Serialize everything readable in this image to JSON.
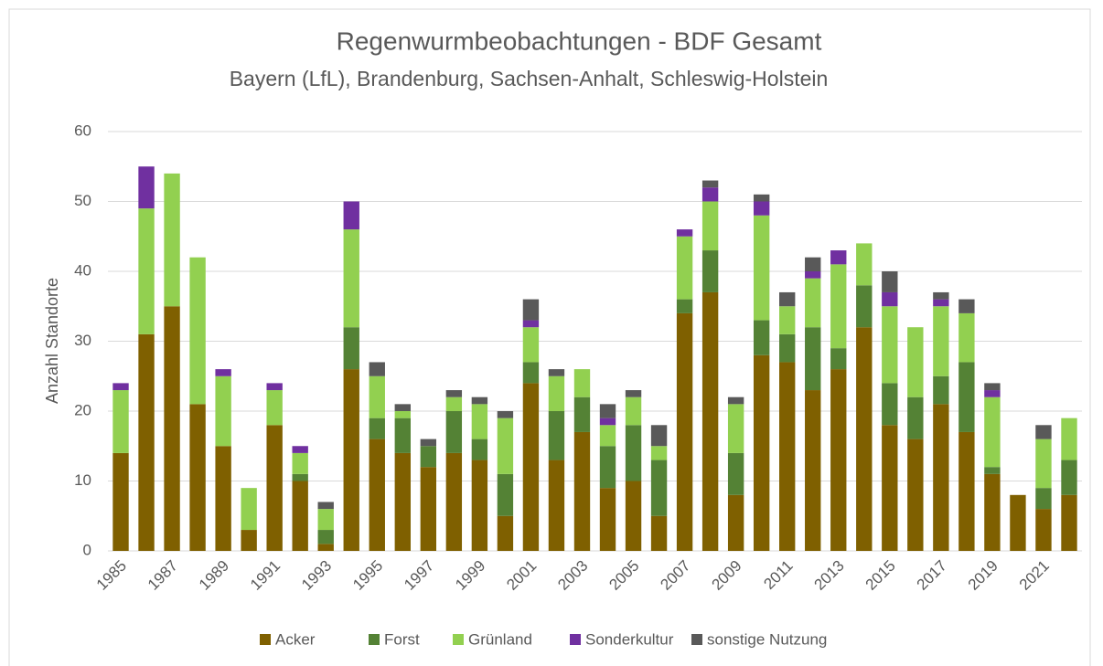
{
  "chart_data": {
    "type": "stacked_bar",
    "title": "Regenwurmbeobachtungen  - BDF Gesamt",
    "subtitle": "Bayern (LfL), Brandenburg, Sachsen-Anhalt, Schleswig-Holstein",
    "y_label": "Anzahl Standorte",
    "categories": [
      "1985",
      null,
      "1987",
      null,
      "1989",
      null,
      "1991",
      null,
      "1993",
      null,
      "1995",
      null,
      "1997",
      null,
      "1999",
      null,
      "2001",
      null,
      "2003",
      null,
      "2005",
      null,
      "2007",
      null,
      "2009",
      null,
      "2011",
      null,
      "2013",
      null,
      "2015",
      null,
      "2017",
      null,
      "2019",
      null,
      "2021",
      null
    ],
    "series": [
      {
        "name": "Acker",
        "color": "#7f6000",
        "values": [
          14,
          31,
          35,
          21,
          15,
          3,
          18,
          10,
          1,
          26,
          16,
          14,
          12,
          14,
          13,
          5,
          24,
          13,
          17,
          9,
          10,
          5,
          34,
          37,
          8,
          28,
          27,
          23,
          26,
          32,
          18,
          16,
          21,
          17,
          11,
          8,
          6,
          8
        ]
      },
      {
        "name": "Forst",
        "color": "#548235",
        "values": [
          0,
          0,
          0,
          0,
          0,
          0,
          0,
          1,
          2,
          6,
          3,
          5,
          3,
          6,
          3,
          6,
          3,
          7,
          5,
          6,
          8,
          8,
          2,
          6,
          6,
          5,
          4,
          9,
          3,
          6,
          6,
          6,
          4,
          10,
          1,
          0,
          3,
          5
        ]
      },
      {
        "name": "Grünland",
        "color": "#92d050",
        "values": [
          9,
          18,
          19,
          21,
          10,
          6,
          5,
          3,
          3,
          14,
          6,
          1,
          0,
          2,
          5,
          8,
          5,
          5,
          4,
          3,
          4,
          2,
          9,
          7,
          7,
          15,
          4,
          7,
          12,
          6,
          11,
          10,
          10,
          7,
          10,
          0,
          7,
          6
        ]
      },
      {
        "name": "Sonderkultur",
        "color": "#7030a0",
        "values": [
          1,
          6,
          0,
          0,
          1,
          0,
          1,
          1,
          0,
          4,
          0,
          0,
          0,
          0,
          0,
          0,
          1,
          0,
          0,
          1,
          0,
          0,
          1,
          2,
          0,
          2,
          0,
          1,
          2,
          0,
          2,
          0,
          1,
          0,
          1,
          0,
          0,
          0
        ]
      },
      {
        "name": "sonstige Nutzung",
        "color": "#595959",
        "values": [
          0,
          0,
          0,
          0,
          0,
          0,
          0,
          0,
          1,
          0,
          2,
          1,
          1,
          1,
          1,
          1,
          3,
          1,
          0,
          2,
          1,
          3,
          0,
          1,
          1,
          1,
          2,
          2,
          0,
          0,
          3,
          0,
          1,
          2,
          1,
          0,
          2,
          0
        ]
      }
    ],
    "ylim": [
      0,
      60
    ],
    "yticks": [
      0,
      10,
      20,
      30,
      40,
      50,
      60
    ],
    "grid": true,
    "legend": "bottom"
  }
}
